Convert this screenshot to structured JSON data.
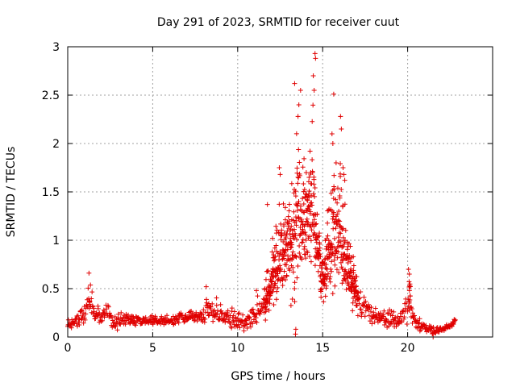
{
  "chart_data": {
    "type": "scatter",
    "title": "Day 291 of 2023, SRMTID for receiver cuut",
    "xlabel": "GPS time / hours",
    "ylabel": "SRMTID / TECUs",
    "xlim": [
      0,
      25
    ],
    "ylim": [
      0,
      3
    ],
    "xticks": [
      0,
      5,
      10,
      15,
      20
    ],
    "yticks": [
      0,
      0.5,
      1,
      1.5,
      2,
      2.5,
      3
    ],
    "xtick_labels": [
      "0",
      "5",
      "10",
      "15",
      "20"
    ],
    "ytick_labels": [
      "0",
      "0.5",
      "1",
      "1.5",
      "2",
      "2.5",
      "3"
    ],
    "grid": true,
    "marker": "+",
    "color": "#e00000",
    "series": [
      {
        "name": "SRMTID",
        "x_start": 0.0,
        "x_end": 22.8,
        "envelope": [
          [
            0.0,
            0.05,
            0.22
          ],
          [
            0.5,
            0.08,
            0.25
          ],
          [
            1.0,
            0.1,
            0.4
          ],
          [
            1.3,
            0.15,
            0.66
          ],
          [
            1.6,
            0.12,
            0.42
          ],
          [
            2.0,
            0.1,
            0.35
          ],
          [
            2.4,
            0.1,
            0.43
          ],
          [
            2.7,
            0.02,
            0.26
          ],
          [
            3.2,
            0.1,
            0.28
          ],
          [
            4.0,
            0.1,
            0.28
          ],
          [
            5.0,
            0.1,
            0.25
          ],
          [
            6.0,
            0.1,
            0.24
          ],
          [
            7.0,
            0.12,
            0.3
          ],
          [
            7.5,
            0.12,
            0.37
          ],
          [
            8.0,
            0.1,
            0.32
          ],
          [
            8.2,
            0.1,
            0.52
          ],
          [
            9.0,
            0.1,
            0.38
          ],
          [
            10.0,
            0.05,
            0.3
          ],
          [
            10.5,
            0.05,
            0.25
          ],
          [
            11.0,
            0.05,
            0.48
          ],
          [
            11.5,
            0.1,
            0.55
          ],
          [
            12.0,
            0.2,
            1.0
          ],
          [
            12.5,
            0.3,
            1.5
          ],
          [
            13.0,
            0.3,
            1.7
          ],
          [
            13.3,
            0.05,
            2.2
          ],
          [
            13.5,
            0.2,
            2.5
          ],
          [
            14.0,
            0.4,
            1.9
          ],
          [
            14.5,
            0.5,
            2.7
          ],
          [
            14.6,
            0.6,
            1.6
          ],
          [
            15.0,
            0.3,
            0.9
          ],
          [
            15.5,
            0.3,
            1.9
          ],
          [
            16.0,
            0.3,
            2.2
          ],
          [
            16.5,
            0.3,
            1.2
          ],
          [
            17.0,
            0.2,
            0.75
          ],
          [
            17.5,
            0.15,
            0.45
          ],
          [
            18.0,
            0.1,
            0.35
          ],
          [
            18.5,
            0.1,
            0.3
          ],
          [
            19.0,
            0.05,
            0.35
          ],
          [
            19.5,
            0.1,
            0.25
          ],
          [
            20.0,
            0.1,
            0.55
          ],
          [
            20.1,
            0.15,
            0.7
          ],
          [
            20.5,
            0.05,
            0.25
          ],
          [
            21.0,
            0.05,
            0.15
          ],
          [
            21.5,
            0.0,
            0.12
          ],
          [
            22.0,
            0.05,
            0.12
          ],
          [
            22.5,
            0.08,
            0.15
          ],
          [
            22.8,
            0.12,
            0.2
          ]
        ],
        "outliers": [
          [
            13.35,
            2.62
          ],
          [
            13.6,
            2.4
          ],
          [
            13.7,
            2.55
          ],
          [
            13.55,
            2.28
          ],
          [
            14.55,
            2.93
          ],
          [
            14.58,
            2.88
          ],
          [
            14.45,
            2.7
          ],
          [
            14.5,
            2.55
          ],
          [
            15.65,
            2.51
          ],
          [
            16.05,
            2.28
          ],
          [
            16.1,
            2.15
          ],
          [
            15.55,
            2.1
          ],
          [
            15.6,
            2.0
          ],
          [
            11.75,
            1.37
          ],
          [
            12.05,
            1.02
          ],
          [
            12.45,
            1.75
          ],
          [
            12.5,
            1.68
          ],
          [
            14.2,
            1.65
          ],
          [
            14.3,
            1.7
          ],
          [
            16.2,
            1.75
          ],
          [
            16.25,
            1.68
          ],
          [
            16.3,
            1.62
          ],
          [
            13.4,
            0.03
          ],
          [
            13.42,
            0.08
          ],
          [
            21.5,
            0.0
          ],
          [
            20.05,
            0.7
          ],
          [
            20.1,
            0.65
          ],
          [
            1.25,
            0.66
          ],
          [
            8.15,
            0.52
          ],
          [
            11.1,
            0.48
          ],
          [
            16.8,
            0.83
          ],
          [
            15.1,
            0.63
          ],
          [
            14.9,
            0.58
          ],
          [
            12.9,
            0.95
          ],
          [
            13.8,
            0.98
          ]
        ]
      }
    ]
  }
}
